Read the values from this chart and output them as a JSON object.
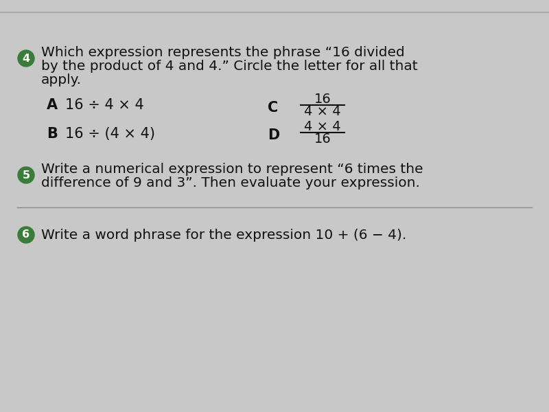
{
  "bg_color": "#c8c8c8",
  "top_line_color": "#aaaaaa",
  "badge_color": "#3a7d3a",
  "text_color": "#111111",
  "q4_number": "4",
  "q4_line1": "Which expression represents the phrase “16 divided",
  "q4_line2": "by the product of 4 and 4.” Circle the letter for all that",
  "q4_line3": "apply.",
  "optA_label": "A",
  "optA_text": "16 ÷ 4 × 4",
  "optB_label": "B",
  "optB_text": "16 ÷ (4 × 4)",
  "optC_label": "C",
  "optC_num": "16",
  "optC_den": "4 × 4",
  "optD_label": "D",
  "optD_num": "4 × 4",
  "optD_den": "16",
  "q5_number": "5",
  "q5_line1": "Write a numerical expression to represent “6 times the",
  "q5_line2": "difference of 9 and 3”. Then evaluate your expression.",
  "q6_number": "6",
  "q6_line1": "Write a word phrase for the expression 10 + (6 − 4)."
}
